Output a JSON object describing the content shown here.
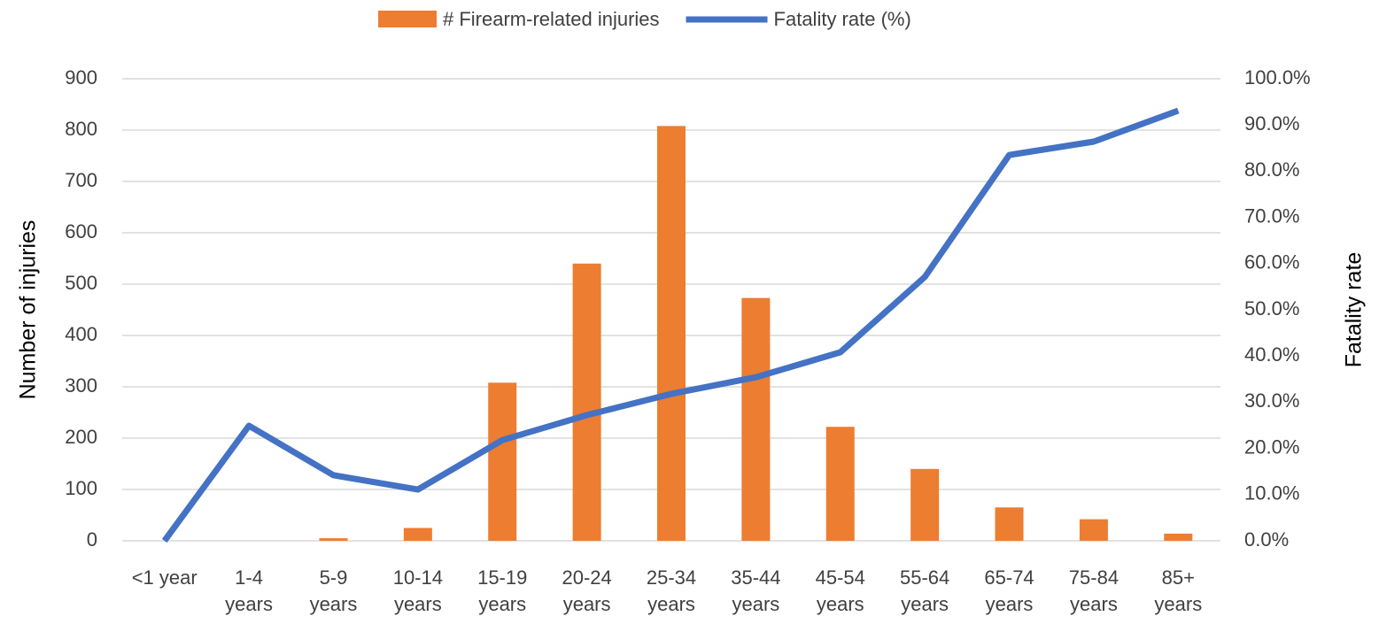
{
  "chart_data": {
    "type": "bar-line",
    "categories": [
      "<1 year",
      "1-4\nyears",
      "5-9\nyears",
      "10-14\nyears",
      "15-19\nyears",
      "20-24\nyears",
      "25-34\nyears",
      "35-44\nyears",
      "45-54\nyears",
      "55-64\nyears",
      "65-74\nyears",
      "75-84\nyears",
      "85+\nyears"
    ],
    "series": [
      {
        "name": "# Firearm-related injuries",
        "type": "bar",
        "color": "#ed7d31",
        "values": [
          0,
          0,
          5,
          25,
          308,
          540,
          808,
          473,
          222,
          140,
          65,
          42,
          14
        ]
      },
      {
        "name": "Fatality rate (%)",
        "type": "line",
        "axis": "y2",
        "color": "#4472c4",
        "values": [
          0,
          24.9,
          14.2,
          11.1,
          21.8,
          27.2,
          31.8,
          35.4,
          40.8,
          57.1,
          83.5,
          86.4,
          93.1
        ]
      }
    ],
    "y_label": "Number of injuries",
    "y2_label": "Fatality rate",
    "ylim": [
      0,
      900
    ],
    "yticks": [
      0,
      100,
      200,
      300,
      400,
      500,
      600,
      700,
      800,
      900
    ],
    "y2lim": [
      0,
      100
    ],
    "y2ticks": [
      {
        "value": 0,
        "label": "0.0%"
      },
      {
        "value": 10,
        "label": "10.0%"
      },
      {
        "value": 20,
        "label": "20.0%"
      },
      {
        "value": 30,
        "label": "30.0%"
      },
      {
        "value": 40,
        "label": "40.0%"
      },
      {
        "value": 50,
        "label": "50.0%"
      },
      {
        "value": 60,
        "label": "60.0%"
      },
      {
        "value": 70,
        "label": "70.0%"
      },
      {
        "value": 80,
        "label": "80.0%"
      },
      {
        "value": 90,
        "label": "90.0%"
      },
      {
        "value": 100,
        "label": "100.0%"
      }
    ],
    "grid": true,
    "legend": "top"
  }
}
